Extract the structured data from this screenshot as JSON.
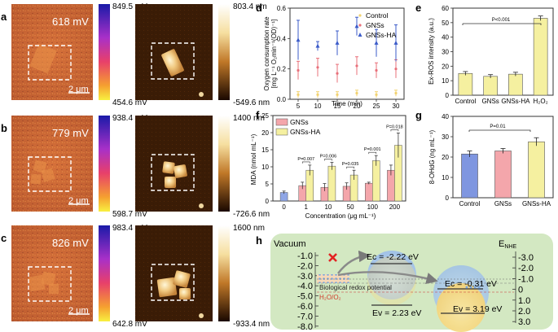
{
  "panel_labels": {
    "a": "a",
    "b": "b",
    "c": "c",
    "d": "d",
    "e": "e",
    "f": "f",
    "g": "g",
    "h": "h"
  },
  "kpfm": [
    {
      "potential": "618 mV",
      "cbar_max": "849.5 mV",
      "cbar_min": "454.6 mV",
      "afm_max": "803.4 nm",
      "afm_min": "-549.6 nm",
      "scale": "2 μm"
    },
    {
      "potential": "779 mV",
      "cbar_max": "938.4 mV",
      "cbar_min": "598.7 mV",
      "afm_max": "1400 nm",
      "afm_min": "-726.6 nm",
      "scale": "2 μm"
    },
    {
      "potential": "826 mV",
      "cbar_max": "983.4 mV",
      "cbar_min": "642.8 mV",
      "afm_max": "1600 nm",
      "afm_min": "-933.4 nm",
      "scale": "2 μm"
    }
  ],
  "colors": {
    "control": "#f2d270",
    "gnss": "#e8707a",
    "gnssha": "#3b5bc9",
    "bar_yellow": "#f5f0a0",
    "bar_pink": "#f4a6ab",
    "bar_blue": "#7f96e0",
    "vacuum_bg": "#d3e8c2",
    "cb_blue": "#a9c9f2",
    "vb_yellow": "#f7dc7d",
    "red_x": "#e32222"
  },
  "chart_data": [
    {
      "id": "d",
      "type": "scatter",
      "xlabel": "Time (min)",
      "ylabel_line1": "Oxygen consumption rate",
      "ylabel_line2": "[mg L⁻¹ O₂min⁻¹(OD)⁻¹]",
      "ylim": [
        0,
        0.6
      ],
      "yticks": [
        "0.0",
        "0.2",
        "0.4",
        "0.6"
      ],
      "x": [
        5,
        10,
        15,
        20,
        25,
        30
      ],
      "xticks": [
        "5",
        "10",
        "15",
        "20",
        "25",
        "30"
      ],
      "series": [
        {
          "name": "Control",
          "values": [
            0.03,
            0.03,
            0.03,
            0.04,
            0.03,
            0.04
          ],
          "err": [
            0.02,
            0.02,
            0.02,
            0.02,
            0.02,
            0.02
          ]
        },
        {
          "name": "GNSs",
          "values": [
            0.19,
            0.21,
            0.17,
            0.22,
            0.19,
            0.2
          ],
          "err": [
            0.06,
            0.06,
            0.06,
            0.06,
            0.05,
            0.06
          ]
        },
        {
          "name": "GNSs-HA",
          "values": [
            0.39,
            0.35,
            0.37,
            0.48,
            0.37,
            0.37
          ],
          "err": [
            0.13,
            0.03,
            0.08,
            0.06,
            0.09,
            0.12
          ]
        }
      ]
    },
    {
      "id": "e",
      "type": "bar",
      "ylabel": "Ex-ROS intensity (a.u.)",
      "categories": [
        "Control",
        "GNSs",
        "GNSs-HA",
        "H₂O₂"
      ],
      "values": [
        15,
        13,
        14.5,
        53
      ],
      "err": [
        1.3,
        1.2,
        1.3,
        1.6
      ],
      "ylim": [
        0,
        60
      ],
      "yticks": [
        "0",
        "10",
        "20",
        "30",
        "40",
        "50",
        "60"
      ],
      "annotation": "P<0.001"
    },
    {
      "id": "f",
      "type": "bar",
      "xlabel": "Concentration (μg mL⁻¹)",
      "ylabel": "MDA (nmol mL⁻¹)",
      "categories": [
        "0",
        "1",
        "10",
        "50",
        "100",
        "200"
      ],
      "ylim": [
        0,
        25
      ],
      "yticks": [
        "0",
        "5",
        "10",
        "15",
        "20",
        "25"
      ],
      "series": [
        {
          "name": "GNSs",
          "values": [
            2.5,
            4.5,
            4,
            4.3,
            5.2,
            9
          ],
          "err": [
            0.4,
            1,
            1.1,
            1,
            0.3,
            1.5
          ]
        },
        {
          "name": "GNSs-HA",
          "values": [
            null,
            9,
            10.2,
            7.6,
            11.8,
            16.3
          ],
          "err": [
            0,
            1.5,
            1.1,
            1.4,
            1.5,
            3.6
          ]
        }
      ],
      "annotations": [
        "P=0.007",
        "P=0.006",
        "P=0.035",
        "P=0.001",
        "P=0.018"
      ]
    },
    {
      "id": "g",
      "type": "bar",
      "ylabel": "8-OHdG (ng mL⁻¹)",
      "categories": [
        "Control",
        "GNSs",
        "GNSs-HA"
      ],
      "values": [
        21.5,
        23,
        27.5
      ],
      "err": [
        1.5,
        1.2,
        2
      ],
      "ylim": [
        0,
        40
      ],
      "yticks": [
        "0",
        "10",
        "20",
        "30",
        "40"
      ],
      "annotation": "P=0.01"
    },
    {
      "id": "h",
      "type": "diagram",
      "title": "Vacuum",
      "right_title": "E",
      "right_sub": "NHE",
      "left_axis": [
        "-1.0",
        "-2.0",
        "-3.0",
        "-4.0",
        "-5.0",
        "-6.0",
        "-7.0",
        "-8.0"
      ],
      "right_axis": [
        "-3.0",
        "-2.0",
        "-1.0",
        "0",
        "1.0",
        "2.0",
        "3.0"
      ],
      "labels": {
        "ec1": "Ec = -2.22 eV",
        "ev1": "Ev = 2.23 eV",
        "ec2": "Ec = -0.31 eV",
        "ev2": "Ev = 3.19 eV",
        "redox": "Biological redox potential",
        "couple": "H₂O/O₂"
      }
    }
  ]
}
